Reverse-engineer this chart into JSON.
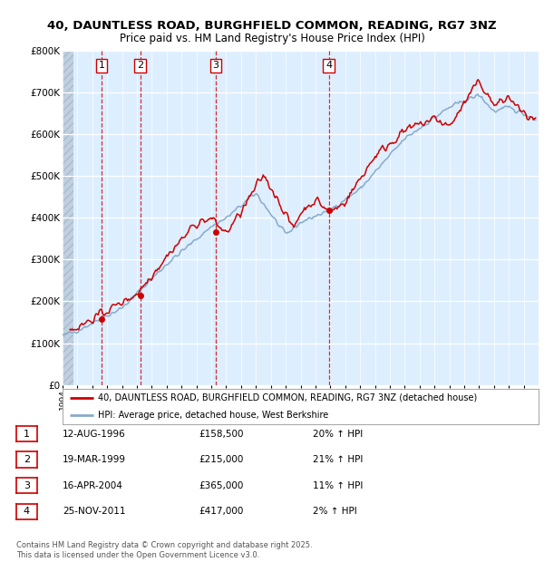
{
  "title_line1": "40, DAUNTLESS ROAD, BURGHFIELD COMMON, READING, RG7 3NZ",
  "title_line2": "Price paid vs. HM Land Registry's House Price Index (HPI)",
  "ylim": [
    0,
    800000
  ],
  "ytick_labels": [
    "£0",
    "£100K",
    "£200K",
    "£300K",
    "£400K",
    "£500K",
    "£600K",
    "£700K",
    "£800K"
  ],
  "ytick_values": [
    0,
    100000,
    200000,
    300000,
    400000,
    500000,
    600000,
    700000,
    800000
  ],
  "bg_color": "#ffffff",
  "plot_bg_color": "#ddeeff",
  "hatch_region_color": "#c8d8e8",
  "grid_color": "#ffffff",
  "red_color": "#cc0000",
  "blue_color": "#88aacc",
  "transaction_markers": [
    {
      "label": "1",
      "year": 1996.617,
      "price": 158500
    },
    {
      "label": "2",
      "year": 1999.217,
      "price": 215000
    },
    {
      "label": "3",
      "year": 2004.292,
      "price": 365000
    },
    {
      "label": "4",
      "year": 2011.9,
      "price": 417000
    }
  ],
  "legend_line1": "40, DAUNTLESS ROAD, BURGHFIELD COMMON, READING, RG7 3NZ (detached house)",
  "legend_line2": "HPI: Average price, detached house, West Berkshire",
  "table_rows": [
    [
      "1",
      "12-AUG-1996",
      "£158,500",
      "20% ↑ HPI"
    ],
    [
      "2",
      "19-MAR-1999",
      "£215,000",
      "21% ↑ HPI"
    ],
    [
      "3",
      "16-APR-2004",
      "£365,000",
      "11% ↑ HPI"
    ],
    [
      "4",
      "25-NOV-2011",
      "£417,000",
      "2% ↑ HPI"
    ]
  ],
  "footnote": "Contains HM Land Registry data © Crown copyright and database right 2025.\nThis data is licensed under the Open Government Licence v3.0.",
  "xstart": 1994,
  "xend": 2026
}
